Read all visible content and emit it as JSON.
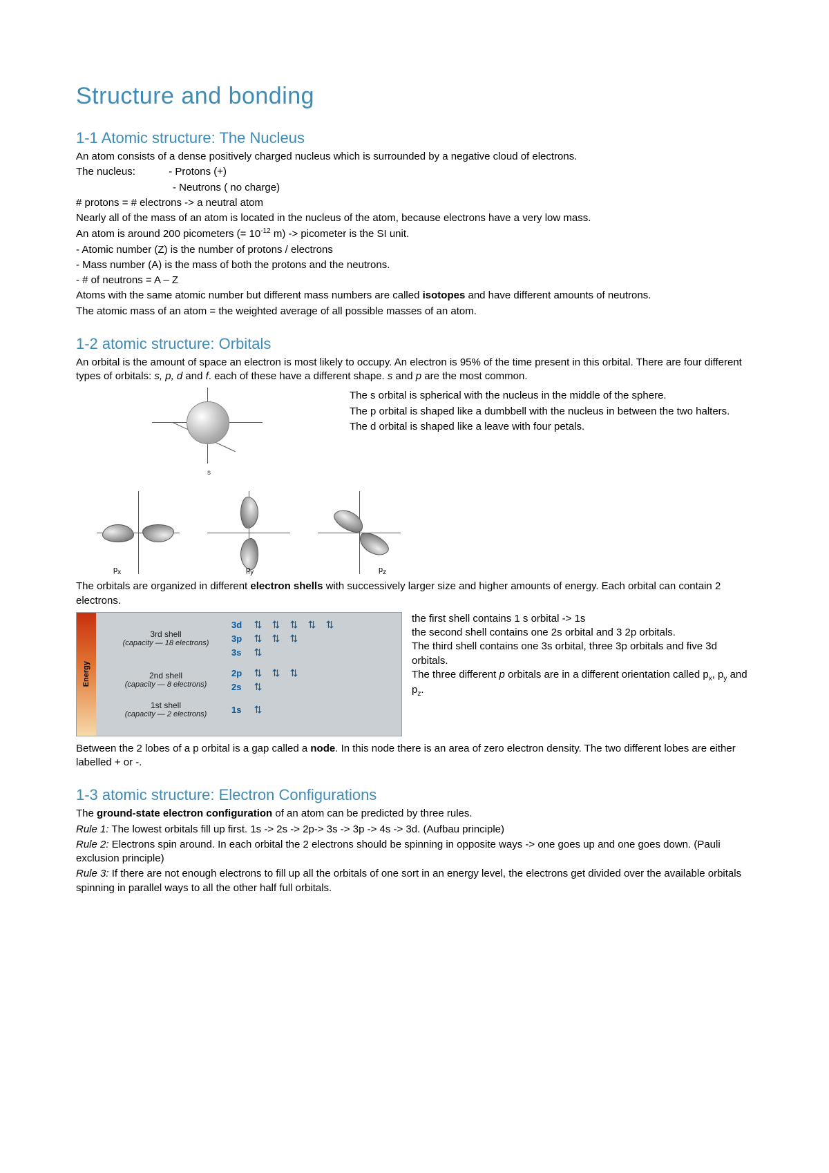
{
  "title": "Structure and bonding",
  "colors": {
    "heading": "#3e8bb5",
    "body": "#000000",
    "orbital_label": "#0a5a9c",
    "shell_bg": "#c9cfd2",
    "energy_gradient_top": "#c83010",
    "energy_gradient_bottom": "#f6d9a8",
    "page_bg": "#ffffff"
  },
  "sections": {
    "s1": {
      "heading": "1-1 Atomic structure: The Nucleus",
      "p1": "An atom consists of a dense positively charged nucleus which is surrounded by a negative cloud of electrons.",
      "p2a": "The nucleus:",
      "p2b": "- Protons (+)",
      "p2c": "- Neutrons ( no charge)",
      "p3": "# protons = # electrons -> a neutral atom",
      "p4": "Nearly all of the mass of an atom is located in the nucleus of the atom, because electrons have a very low mass.",
      "p5a": "An atom is around 200 picometers (= 10",
      "p5b": "-12",
      "p5c": " m) -> picometer is the SI unit.",
      "p6": "- Atomic number (Z) is the number of protons / electrons",
      "p7": "- Mass number (A) is the mass of both the protons and the neutrons.",
      "p8": "- # of neutrons = A – Z",
      "p9a": "Atoms with the same atomic number but different mass numbers are called ",
      "p9b": "isotopes",
      "p9c": " and have different amounts of neutrons.",
      "p10": "The atomic mass of an atom = the weighted average of all possible masses of an atom."
    },
    "s2": {
      "heading": "1-2 atomic structure: Orbitals",
      "p1a": "An orbital is the amount of space an electron is most likely to occupy. An electron is 95% of the time present in this orbital. There are four different types of orbitals: ",
      "p1b": "s, p, d",
      "p1c": " and ",
      "p1d": "f",
      "p1e": ". each of these have a different shape. ",
      "p1f": "s",
      "p1g": " and ",
      "p1h": "p",
      "p1i": " are the most common.",
      "side1": "The s orbital is spherical with the nucleus in the middle of the sphere.",
      "side2": "The p orbital is shaped like a dumbbell with the nucleus in between the two halters.",
      "side3": "The d orbital is shaped like a leave with four petals.",
      "p_labels": {
        "px": "p",
        "py": "p",
        "pz": "p",
        "px_sub": "x",
        "py_sub": "y",
        "pz_sub": "z"
      },
      "p4a": "The orbitals are organized in different ",
      "p4b": "electron shells",
      "p4c": " with successively larger size and higher amounts of energy. Each orbital can contain 2 electrons.",
      "shell_side1": "the first shell contains 1 s orbital -> 1s",
      "shell_side2": "the second shell contains one 2s orbital and 3 2p orbitals.",
      "shell_side3": "The third shell contains one 3s orbital, three 3p orbitals and five 3d orbitals.",
      "shell_side4a": "The three different ",
      "shell_side4b": "p",
      "shell_side4c": " orbitals are in a different orientation called p",
      "shell_side4d": "x",
      "shell_side4e": ", p",
      "shell_side4f": "y",
      "shell_side4g": " and p",
      "shell_side4h": "z",
      "shell_side4i": ".",
      "p5a": "Between the 2 lobes of a p orbital is a gap called a ",
      "p5b": "node",
      "p5c": ". In this node there is an area of zero electron density. The two different lobes are either labelled + or -."
    },
    "s3": {
      "heading": "1-3 atomic structure: Electron Configurations",
      "p1a": "The ",
      "p1b": "ground-state electron configuration",
      "p1c": " of an atom can be predicted by three rules.",
      "r1a": "Rule 1:",
      "r1b": " The lowest orbitals fill up first. 1s -> 2s -> 2p-> 3s -> 3p -> 4s -> 3d. (Aufbau principle)",
      "r2a": "Rule 2:",
      "r2b": " Electrons spin around. In each orbital the 2 electrons should be spinning in opposite ways -> one goes up and one goes down. (Pauli exclusion principle)",
      "r3a": "Rule 3:",
      "r3b": " If there are not enough electrons to fill up all the orbitals of one sort in an energy level, the electrons get divided over the available orbitals spinning in parallel ways to all the other half full orbitals."
    }
  },
  "shell_diagram": {
    "energy_label": "Energy",
    "shells": [
      {
        "name": "3rd shell",
        "capacity": "(capacity — 18 electrons)",
        "rows": [
          {
            "orbital": "3d",
            "slots": 5
          },
          {
            "orbital": "3p",
            "slots": 3
          },
          {
            "orbital": "3s",
            "slots": 1
          }
        ]
      },
      {
        "name": "2nd shell",
        "capacity": "(capacity — 8 electrons)",
        "rows": [
          {
            "orbital": "2p",
            "slots": 3
          },
          {
            "orbital": "2s",
            "slots": 1
          }
        ]
      },
      {
        "name": "1st shell",
        "capacity": "(capacity — 2 electrons)",
        "rows": [
          {
            "orbital": "1s",
            "slots": 1
          }
        ]
      }
    ],
    "slot_glyph": "⇅"
  }
}
